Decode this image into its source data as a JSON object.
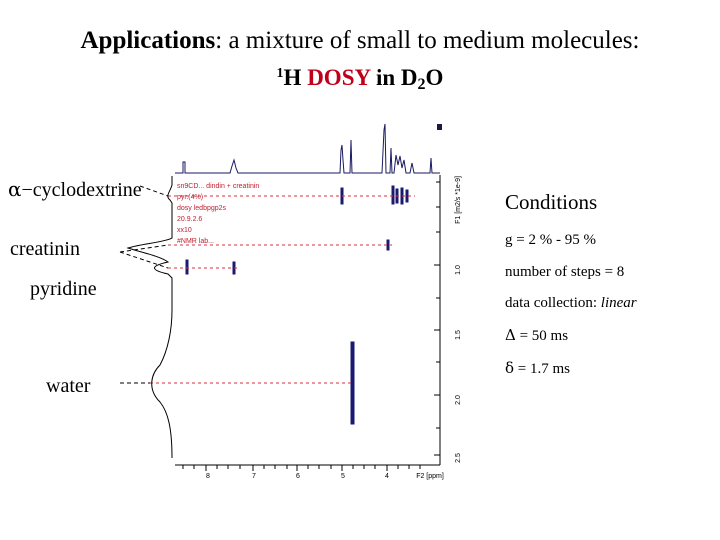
{
  "title": {
    "bold_part": "Applications",
    "rest": ": a mixture of small to medium molecules:"
  },
  "subtitle": {
    "isotope": "1",
    "nucleus": "H",
    "technique": "DOSY",
    "in_word": "in D",
    "sub": "2",
    "solvent_end": "O"
  },
  "molecules": {
    "cyclodextrine": {
      "alpha": "α",
      "label": "−cyclodextrine"
    },
    "creatinin": "creatinin",
    "pyridine": "pyridine",
    "water": "water"
  },
  "conditions": {
    "heading": "Conditions",
    "gradient": "g = 2 % - 95 %",
    "steps": "number of steps = 8",
    "collection_label": "data collection: ",
    "collection_value": "linear",
    "big_delta_symbol": "Δ",
    "big_delta_value": " = 50 ms",
    "small_delta_symbol": "δ",
    "small_delta_value": " = 1.7 ms"
  },
  "spectrum": {
    "y_axis_label": "F1 [m2/s *1e-9]",
    "y_ticks": [
      "1.0",
      "1.5",
      "2.0",
      "2.5"
    ],
    "x_ticks": [
      "8",
      "7",
      "6",
      "5",
      "4"
    ],
    "x_axis_label": "F2 [ppm]",
    "info_lines": [
      "sn9CD... dindin + creatinin",
      "pyr.(4%)",
      "dosy ledbpgp2s",
      "20.9.2.6",
      "xx10",
      "#NMR lab..."
    ]
  }
}
